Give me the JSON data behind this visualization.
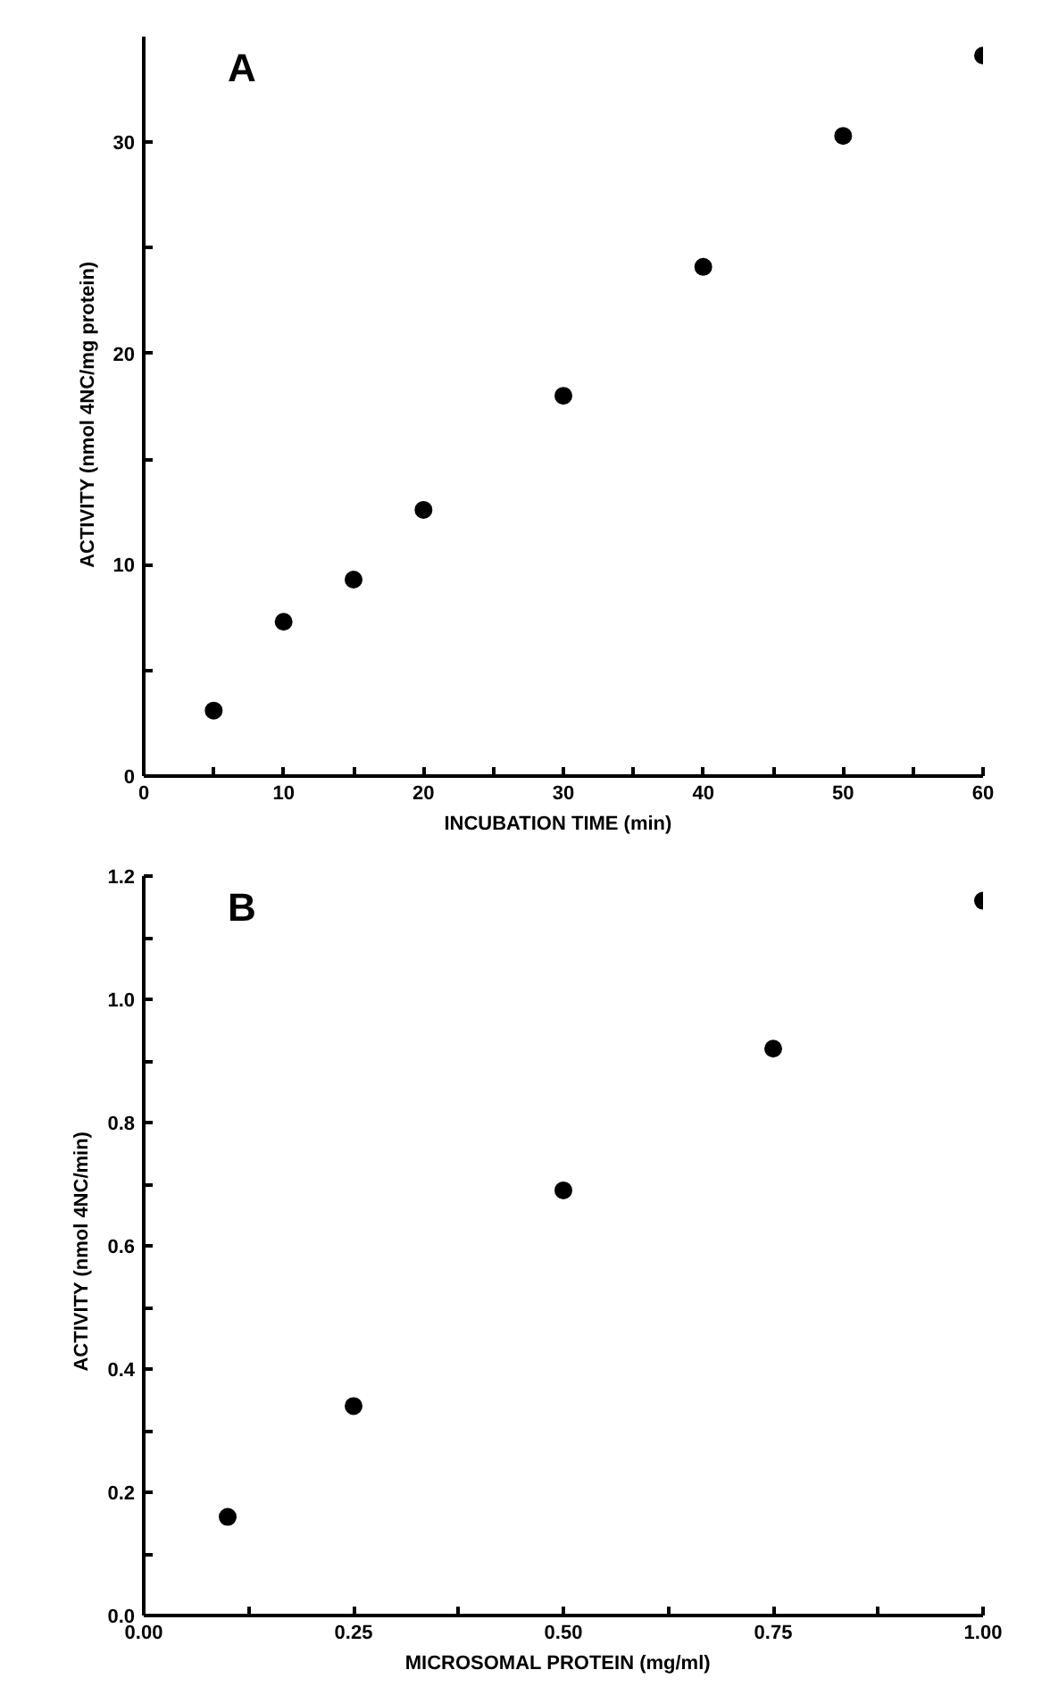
{
  "chart_data": [
    {
      "type": "scatter",
      "title": "A",
      "xlabel": "INCUBATION  TIME  (min)",
      "ylabel": "ACTIVITY  (nmol  4NC/mg  protein)",
      "marker": "circle",
      "grid": false,
      "x": [
        5,
        10,
        15,
        20,
        30,
        40,
        50,
        60
      ],
      "series": [
        {
          "color": "#000000",
          "values": [
            3.1,
            7.3,
            9.3,
            12.6,
            18.0,
            24.1,
            30.3,
            34.1
          ]
        }
      ],
      "xlim": [
        0,
        60
      ],
      "ylim": [
        0,
        35
      ],
      "xticks": [
        0,
        {
          "value": 5,
          "label": null
        },
        10,
        {
          "value": 15,
          "label": null
        },
        20,
        {
          "value": 25,
          "label": null
        },
        30,
        {
          "value": 35,
          "label": null
        },
        40,
        {
          "value": 45,
          "label": null
        },
        50,
        {
          "value": 55,
          "label": null
        },
        60
      ],
      "yticks": [
        0,
        {
          "value": 5,
          "label": null
        },
        10,
        {
          "value": 15,
          "label": null
        },
        20,
        {
          "value": 25,
          "label": null
        },
        30
      ]
    },
    {
      "type": "scatter",
      "title": "B",
      "xlabel": "MICROSOMAL  PROTEIN  (mg/ml)",
      "ylabel": "ACTIVITY  (nmol  4NC/min)",
      "marker": "circle",
      "grid": false,
      "x": [
        0.1,
        0.25,
        0.5,
        0.75,
        1.0
      ],
      "series": [
        {
          "color": "#000000",
          "values": [
            0.16,
            0.34,
            0.69,
            0.92,
            1.16
          ]
        }
      ],
      "xlim": [
        0,
        1.0
      ],
      "ylim": [
        0,
        1.2
      ],
      "xticks": [
        {
          "value": 0,
          "label": "0.00"
        },
        {
          "value": 0.125,
          "label": null
        },
        {
          "value": 0.25,
          "label": "0.25"
        },
        {
          "value": 0.375,
          "label": null
        },
        {
          "value": 0.5,
          "label": "0.50"
        },
        {
          "value": 0.625,
          "label": null
        },
        {
          "value": 0.75,
          "label": "0.75"
        },
        {
          "value": 0.875,
          "label": null
        },
        {
          "value": 1.0,
          "label": "1.00"
        }
      ],
      "yticks": [
        {
          "value": 0,
          "label": "0.0"
        },
        {
          "value": 0.1,
          "label": null
        },
        0.2,
        {
          "value": 0.3,
          "label": null
        },
        0.4,
        {
          "value": 0.5,
          "label": null
        },
        0.6,
        {
          "value": 0.7,
          "label": null
        },
        0.8,
        {
          "value": 0.9,
          "label": null
        },
        {
          "value": 1.0,
          "label": "1.0"
        },
        {
          "value": 1.1,
          "label": null
        },
        1.2
      ]
    }
  ]
}
